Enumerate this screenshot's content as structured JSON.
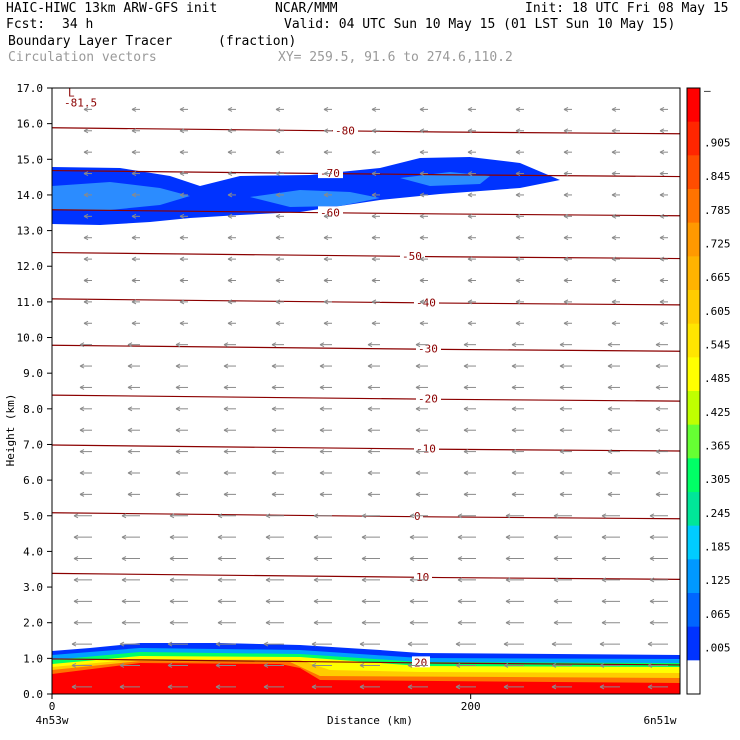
{
  "header": {
    "model": "HAIC-HIWC 13km ARW-GFS init",
    "org": "NCAR/MMM",
    "init": "Init: 18 UTC Fri 08 May 15",
    "fcst_label": "Fcst:",
    "fcst_value": "34 h",
    "valid": "Valid: 04 UTC Sun 10 May 15 (01 LST Sun 10 May 15)",
    "field": "Boundary Layer Tracer",
    "units": "(fraction)",
    "overlay": "Circulation vectors",
    "xy": "XY= 259.5, 91.6 to 274.6,110.2"
  },
  "chart_data": {
    "type": "heatmap",
    "xlabel": "Distance (km)",
    "ylabel": "Height (km)",
    "xlim": [
      0,
      300
    ],
    "ylim": [
      0,
      17
    ],
    "x_ticks": [
      "0",
      "200"
    ],
    "x_tick_values": [
      0,
      200
    ],
    "x_end_labels": [
      "4n53w",
      "6n51w"
    ],
    "y_ticks": [
      "0.0",
      "1.0",
      "2.0",
      "3.0",
      "4.0",
      "5.0",
      "6.0",
      "7.0",
      "8.0",
      "9.0",
      "10.0",
      "11.0",
      "12.0",
      "13.0",
      "14.0",
      "15.0",
      "16.0",
      "17.0"
    ],
    "colorbar": {
      "labels": [
        "–",
        ".905",
        ".845",
        ".785",
        ".725",
        ".665",
        ".605",
        ".545",
        ".485",
        ".425",
        ".365",
        ".305",
        ".245",
        ".185",
        ".125",
        ".065",
        ".005"
      ],
      "colors": [
        "#ff0000",
        "#ff2600",
        "#ff4d00",
        "#ff7300",
        "#ff9900",
        "#ffb300",
        "#ffcc00",
        "#ffe500",
        "#ffff00",
        "#bfff00",
        "#66ff33",
        "#00ff66",
        "#00e699",
        "#00ccff",
        "#0099ff",
        "#0066ff",
        "#0033ff",
        "#ffffff"
      ]
    },
    "temperature_contours": [
      {
        "label": "-81.5",
        "height": 16.6
      },
      {
        "label": "-80",
        "height": 15.8
      },
      {
        "label": "-70",
        "height": 14.6
      },
      {
        "label": "-60",
        "height": 13.5
      },
      {
        "label": "-50",
        "height": 12.3
      },
      {
        "label": "-40",
        "height": 11.0
      },
      {
        "label": "-30",
        "height": 9.7
      },
      {
        "label": "-20",
        "height": 8.3
      },
      {
        "label": "-10",
        "height": 6.9
      },
      {
        "label": "0",
        "height": 5.0
      },
      {
        "label": "10",
        "height": 3.3
      },
      {
        "label": "20",
        "height": 0.9
      }
    ],
    "tracer_upper_layer": {
      "height_range": [
        13.3,
        15.0
      ],
      "x_range": [
        0,
        240
      ],
      "max_fraction": 0.125
    },
    "tracer_boundary_layer": {
      "height_range": [
        0.0,
        1.4
      ],
      "max_fraction": 0.965
    }
  }
}
